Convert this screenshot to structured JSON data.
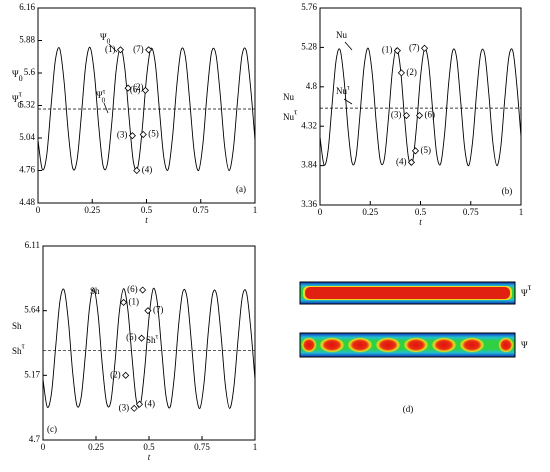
{
  "chart_data": [
    {
      "type": "line",
      "panel": "(a)",
      "x_label": "t",
      "y_label": [
        {
          "text": "Ψ",
          "sub": "0"
        },
        {
          "text": "Ψ",
          "sub": "0",
          "sup": "τ"
        }
      ],
      "xlim": [
        0,
        1
      ],
      "xticks": [
        0,
        0.25,
        0.5,
        0.75,
        1
      ],
      "ylim": [
        4.48,
        6.16
      ],
      "yticks": [
        4.48,
        4.76,
        5.04,
        5.32,
        5.6,
        5.88,
        6.16
      ],
      "x": [
        0,
        0.02,
        0.04,
        0.06,
        0.08,
        0.1,
        0.12,
        0.14,
        0.16,
        0.18,
        0.2,
        0.22,
        0.24,
        0.26,
        0.28,
        0.3,
        0.32,
        0.34,
        0.36,
        0.38,
        0.4,
        0.42,
        0.44,
        0.46,
        0.48,
        0.5,
        0.52,
        0.54,
        0.56,
        0.58,
        0.6,
        0.62,
        0.64,
        0.66,
        0.68,
        0.7,
        0.72,
        0.74,
        0.76,
        0.78,
        0.8,
        0.82,
        0.84,
        0.86,
        0.88,
        0.9,
        0.92,
        0.94,
        0.96,
        0.98,
        1
      ],
      "series": [
        {
          "name": {
            "text": "Ψ",
            "sub": "0"
          },
          "color": "#000000",
          "values": [
            5.02,
            4.77,
            4.89,
            5.31,
            5.71,
            5.81,
            5.53,
            5.08,
            4.78,
            4.85,
            5.24,
            5.67,
            5.82,
            5.59,
            5.14,
            4.8,
            4.82,
            5.17,
            5.62,
            5.82,
            5.64,
            5.21,
            4.83,
            4.79,
            5.11,
            5.56,
            5.81,
            5.69,
            5.27,
            4.87,
            4.77,
            5.05,
            5.5,
            5.8,
            5.73,
            5.34,
            4.92,
            4.76,
            4.99,
            5.44,
            5.78,
            5.76,
            5.41,
            4.97,
            4.76,
            4.94,
            5.37,
            5.75,
            5.79,
            5.47,
            5.02
          ]
        }
      ],
      "mean_line": {
        "name": {
          "text": "Ψ",
          "sub": "0",
          "sup": "τ"
        },
        "value": 5.29,
        "dash": true
      },
      "markers": {
        "labels": [
          "(1)",
          "(2)",
          "(3)",
          "(4)",
          "(5)",
          "(6)",
          "(7)"
        ],
        "x": [
          0.38,
          0.415,
          0.435,
          0.455,
          0.485,
          0.495,
          0.51
        ],
        "y": [
          5.8,
          5.47,
          5.06,
          4.76,
          5.07,
          5.45,
          5.8
        ]
      }
    },
    {
      "type": "line",
      "panel": "(b)",
      "x_label": "t",
      "y_label": [
        {
          "text": "Nu"
        },
        {
          "text": "Nu",
          "sup": "τ"
        }
      ],
      "xlim": [
        0,
        1
      ],
      "xticks": [
        0,
        0.25,
        0.5,
        0.75,
        1
      ],
      "ylim": [
        3.36,
        5.76
      ],
      "yticks": [
        3.36,
        3.84,
        4.32,
        4.8,
        5.28,
        5.76
      ],
      "x": [
        0,
        0.02,
        0.04,
        0.06,
        0.08,
        0.1,
        0.12,
        0.14,
        0.16,
        0.18,
        0.2,
        0.22,
        0.24,
        0.26,
        0.28,
        0.3,
        0.32,
        0.34,
        0.36,
        0.38,
        0.4,
        0.42,
        0.44,
        0.46,
        0.48,
        0.5,
        0.52,
        0.54,
        0.56,
        0.58,
        0.6,
        0.62,
        0.64,
        0.66,
        0.68,
        0.7,
        0.72,
        0.74,
        0.76,
        0.78,
        0.8,
        0.82,
        0.84,
        0.86,
        0.88,
        0.9,
        0.92,
        0.94,
        0.96,
        0.98,
        1
      ],
      "series": [
        {
          "name": {
            "text": "Nu"
          },
          "color": "#000000",
          "values": [
            4.19,
            3.85,
            4.02,
            4.58,
            5.12,
            5.25,
            4.88,
            4.27,
            3.87,
            3.96,
            4.49,
            5.06,
            5.27,
            4.96,
            4.36,
            3.9,
            3.92,
            4.4,
            4.99,
            5.27,
            5.03,
            4.44,
            3.94,
            3.88,
            4.31,
            4.92,
            5.26,
            5.09,
            4.53,
            3.99,
            3.86,
            4.23,
            4.84,
            5.24,
            5.15,
            4.62,
            4.05,
            3.84,
            4.15,
            4.75,
            5.21,
            5.19,
            4.71,
            4.12,
            3.84,
            4.08,
            4.67,
            5.17,
            5.23,
            4.8,
            4.19
          ]
        }
      ],
      "mean_line": {
        "name": {
          "text": "Nu",
          "sup": "τ"
        },
        "value": 4.54,
        "dash": true
      },
      "markers": {
        "labels": [
          "(1)",
          "(2)",
          "(3)",
          "(4)",
          "(5)",
          "(6)",
          "(7)"
        ],
        "x": [
          0.385,
          0.405,
          0.43,
          0.455,
          0.475,
          0.495,
          0.52
        ],
        "y": [
          5.24,
          4.97,
          4.45,
          3.88,
          4.02,
          4.45,
          5.27
        ]
      }
    },
    {
      "type": "line",
      "panel": "(c)",
      "x_label": "t",
      "y_label": [
        {
          "text": "Sh"
        },
        {
          "text": "Sh",
          "sup": "τ"
        }
      ],
      "xlim": [
        0,
        1
      ],
      "xticks": [
        0,
        0.25,
        0.5,
        0.75,
        1
      ],
      "ylim": [
        4.7,
        6.11
      ],
      "yticks": [
        4.7,
        5.17,
        5.64,
        6.11
      ],
      "x": [
        0,
        0.02,
        0.04,
        0.06,
        0.08,
        0.1,
        0.12,
        0.14,
        0.16,
        0.18,
        0.2,
        0.22,
        0.24,
        0.26,
        0.28,
        0.3,
        0.32,
        0.34,
        0.36,
        0.38,
        0.4,
        0.42,
        0.44,
        0.46,
        0.48,
        0.5,
        0.52,
        0.54,
        0.56,
        0.58,
        0.6,
        0.62,
        0.64,
        0.66,
        0.68,
        0.7,
        0.72,
        0.74,
        0.76,
        0.78,
        0.8,
        0.82,
        0.84,
        0.86,
        0.88,
        0.9,
        0.92,
        0.94,
        0.96,
        0.98,
        1
      ],
      "series": [
        {
          "name": {
            "text": "Sh"
          },
          "color": "#000000",
          "values": [
            5.14,
            4.94,
            5.04,
            5.38,
            5.71,
            5.79,
            5.56,
            5.19,
            4.95,
            5.01,
            5.32,
            5.67,
            5.8,
            5.61,
            5.24,
            4.97,
            4.98,
            5.27,
            5.63,
            5.8,
            5.65,
            5.3,
            4.99,
            4.96,
            5.22,
            5.59,
            5.8,
            5.69,
            5.35,
            5.02,
            4.94,
            5.17,
            5.54,
            5.78,
            5.73,
            5.41,
            5.06,
            4.93,
            5.12,
            5.49,
            5.76,
            5.75,
            5.46,
            5.1,
            4.93,
            5.08,
            5.43,
            5.74,
            5.77,
            5.51,
            5.14
          ]
        }
      ],
      "mean_line": {
        "name": {
          "text": "Sh",
          "sup": "τ"
        },
        "value": 5.35,
        "dash": true
      },
      "markers": {
        "labels": [
          "(1)",
          "(2)",
          "(3)",
          "(4)",
          "(5)",
          "(6)",
          "(7)"
        ],
        "x": [
          0.38,
          0.39,
          0.43,
          0.455,
          0.465,
          0.47,
          0.495
        ],
        "y": [
          5.7,
          5.17,
          4.93,
          4.96,
          5.44,
          5.79,
          5.64
        ]
      }
    }
  ],
  "panel_d": {
    "label": "(d)",
    "images": [
      {
        "name": {
          "text": "Ψ",
          "sup": "τ"
        }
      },
      {
        "name": {
          "text": "Ψ"
        }
      }
    ]
  }
}
